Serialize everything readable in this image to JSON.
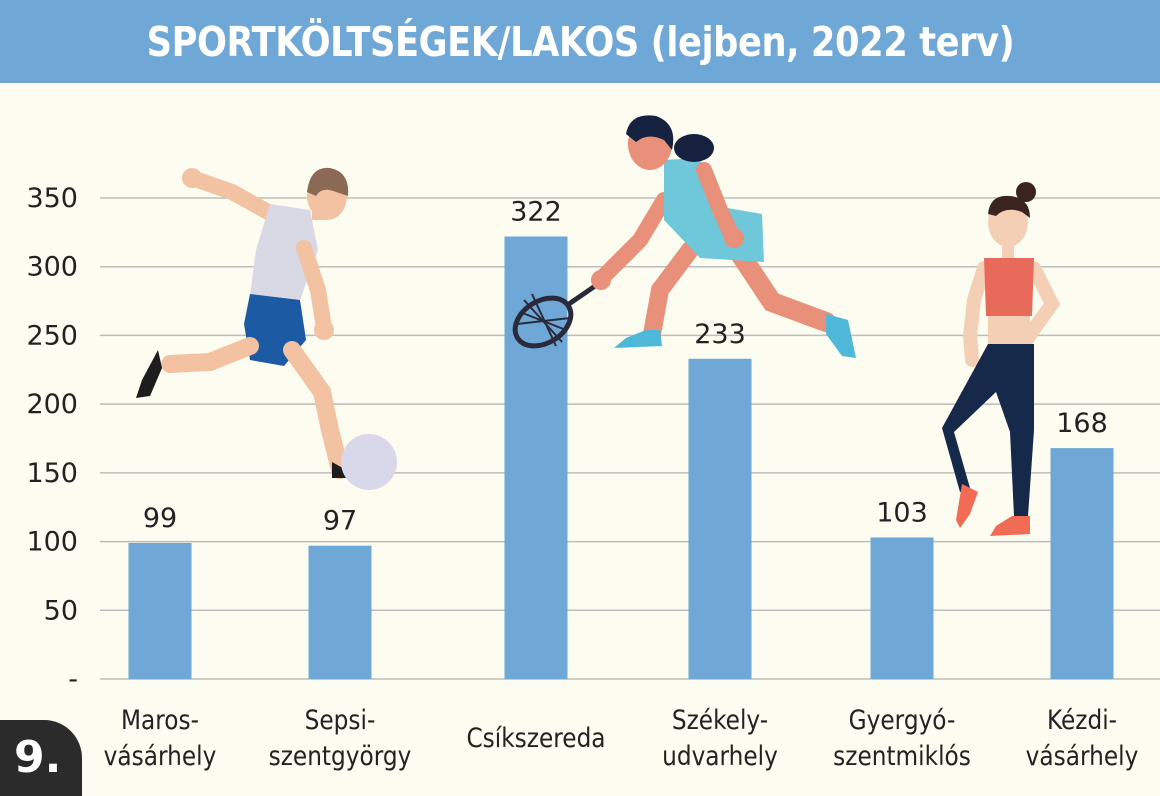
{
  "chart_data": {
    "type": "bar",
    "title": "SPORTKÖLTSÉGEK/LAKOS (lejben, 2022 terv)",
    "categories": [
      [
        "Maros-",
        "vásárhely"
      ],
      [
        "Sepsi-",
        "szentgyörgy"
      ],
      [
        "Csíkszereda"
      ],
      [
        "Székely-",
        "udvarhely"
      ],
      [
        "Gyergyó-",
        "szentmiklós"
      ],
      [
        "Kézdi-",
        "vásárhely"
      ]
    ],
    "values": [
      99,
      97,
      322,
      233,
      103,
      168
    ],
    "data_labels": [
      "99",
      "97",
      "322",
      "233",
      "103",
      "168"
    ],
    "ylim": [
      0,
      350
    ],
    "yticks": [
      0,
      50,
      100,
      150,
      200,
      250,
      300,
      350
    ],
    "ytick_labels": [
      "-",
      "50",
      "100",
      "150",
      "200",
      "250",
      "300",
      "350"
    ],
    "grid": true,
    "bar_color": "#6fa8d6",
    "decorations": [
      "soccer-player-illustration",
      "tennis-player-illustration",
      "fitness-woman-illustration"
    ]
  },
  "page": {
    "number": "9."
  },
  "colors": {
    "header": "#6fa8d6",
    "background": "#fdfcf0",
    "gridline": "#bdbdbd",
    "badge": "#2b2b2b"
  }
}
